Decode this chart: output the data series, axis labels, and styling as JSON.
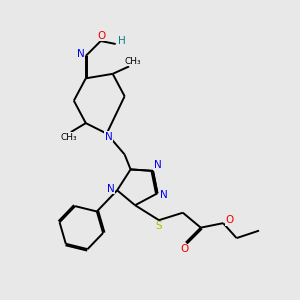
{
  "background_color": "#e8e8e8",
  "atom_colors": {
    "C": "#000000",
    "N": "#0000ee",
    "O": "#ee0000",
    "S": "#bbbb00",
    "H": "#008080"
  },
  "figsize": [
    3.0,
    3.0
  ],
  "dpi": 100,
  "bond_lw": 1.4,
  "font_size": 7.0
}
